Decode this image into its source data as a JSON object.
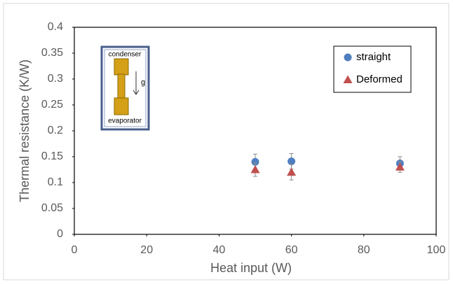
{
  "chart_data": {
    "type": "scatter",
    "x_label": "Heat input (W)",
    "y_label": "Thermal resistance (K/W)",
    "x": [
      50,
      60,
      90
    ],
    "series": [
      {
        "name": "straight",
        "color": "#4f7fc0",
        "marker": "circle",
        "values": [
          0.14,
          0.141,
          0.137
        ],
        "errors": [
          0.015,
          0.015,
          0.013
        ]
      },
      {
        "name": "Deformed",
        "color": "#c0504d",
        "marker": "triangle",
        "values": [
          0.125,
          0.12,
          0.13
        ],
        "errors": [
          0.013,
          0.015,
          0.01
        ]
      }
    ],
    "xlim": [
      0,
      100
    ],
    "xticks": [
      0,
      20,
      40,
      60,
      80,
      100
    ],
    "ylim": [
      0,
      0.4
    ],
    "yticks": [
      0,
      0.05,
      0.1,
      0.15,
      0.2,
      0.25,
      0.3,
      0.35,
      0.4
    ],
    "grid": false,
    "legend": "upper right",
    "annotations": [
      "condenser",
      "g",
      "evaporator"
    ]
  }
}
